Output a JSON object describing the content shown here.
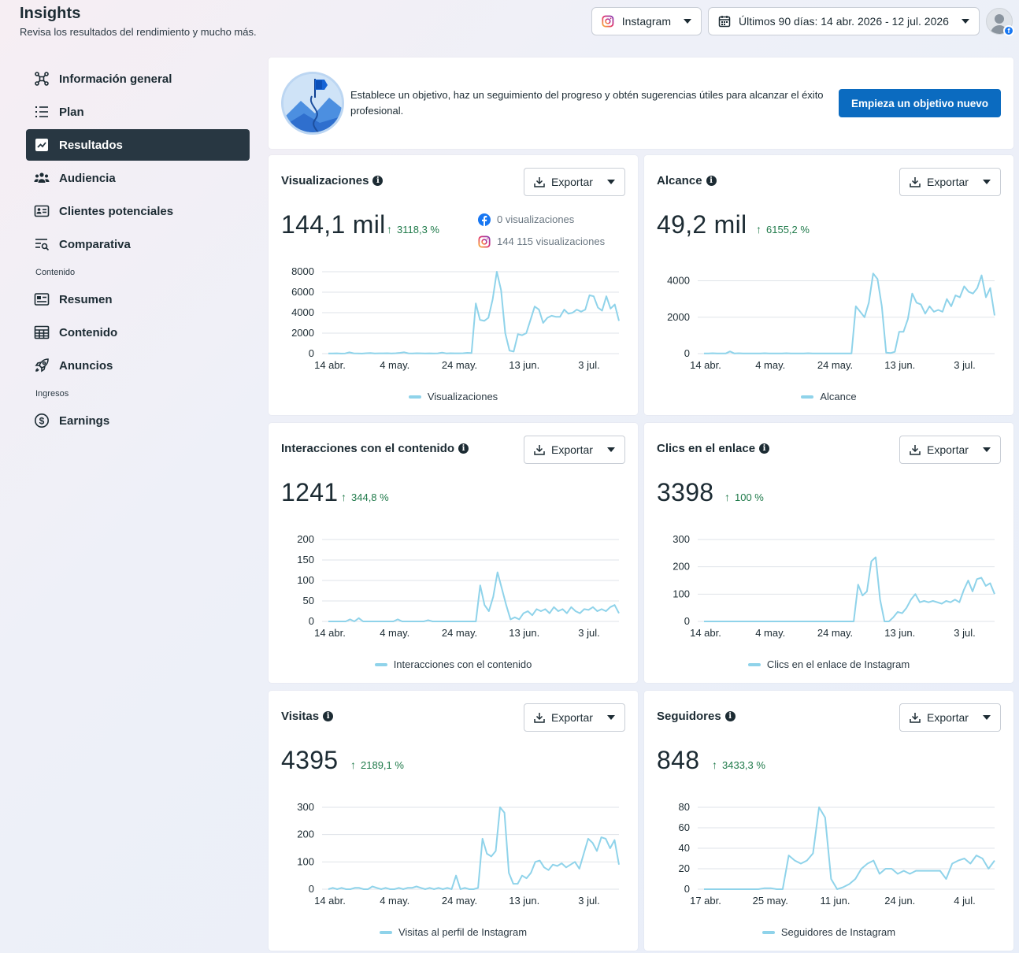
{
  "header": {
    "title": "Insights",
    "subtitle": "Revisa los resultados del rendimiento y mucho más.",
    "platform_label": "Instagram",
    "date_range_label": "Últimos 90 días: 14 abr. 2026 - 12 jul. 2026"
  },
  "sidebar": {
    "items": [
      {
        "label": "Información general",
        "icon": "network-icon"
      },
      {
        "label": "Plan",
        "icon": "list-icon"
      },
      {
        "label": "Resultados",
        "icon": "trend-chart-icon",
        "active": true
      },
      {
        "label": "Audiencia",
        "icon": "people-icon"
      },
      {
        "label": "Clientes potenciales",
        "icon": "contact-card-icon"
      },
      {
        "label": "Comparativa",
        "icon": "compare-list-icon"
      }
    ],
    "section_contenido": "Contenido",
    "content_items": [
      {
        "label": "Resumen",
        "icon": "summary-icon"
      },
      {
        "label": "Contenido",
        "icon": "table-icon"
      },
      {
        "label": "Anuncios",
        "icon": "rocket-icon"
      }
    ],
    "section_ingresos": "Ingresos",
    "income_items": [
      {
        "label": "Earnings",
        "icon": "dollar-icon"
      }
    ]
  },
  "goal": {
    "text": "Establece un objetivo, haz un seguimiento del progreso y obtén sugerencias útiles para alcanzar el éxito profesional.",
    "button_label": "Empieza un objetivo nuevo"
  },
  "export_label": "Exportar",
  "colors": {
    "line": "#8fd3ea",
    "active_nav": "#283742",
    "primary": "#0b6bc0",
    "positive": "#1f7a4a"
  },
  "cards": [
    {
      "title": "Visualizaciones",
      "value": "144,1 mil",
      "delta": "3118,3 %",
      "legend": "Visualizaciones",
      "breakdown": [
        {
          "icon": "facebook-icon",
          "text": "0 visualizaciones"
        },
        {
          "icon": "instagram-icon",
          "text": "144 115 visualizaciones"
        }
      ]
    },
    {
      "title": "Alcance",
      "value": "49,2 mil",
      "delta": "6155,2 %",
      "legend": "Alcance"
    },
    {
      "title": "Interacciones con el contenido",
      "value": "1241",
      "delta": "344,8 %",
      "legend": "Interacciones con el contenido"
    },
    {
      "title": "Clics en el enlace",
      "value": "3398",
      "delta": "100 %",
      "legend": "Clics en el enlace de Instagram"
    },
    {
      "title": "Visitas",
      "value": "4395",
      "delta": "2189,1 %",
      "legend": "Visitas al perfil de Instagram"
    },
    {
      "title": "Seguidores",
      "value": "848",
      "delta": "3433,3 %",
      "legend": "Seguidores de Instagram"
    }
  ],
  "chart_data": [
    {
      "type": "line",
      "series": [
        {
          "name": "Visualizaciones",
          "values": [
            20,
            20,
            30,
            10,
            20,
            120,
            30,
            20,
            10,
            40,
            60,
            20,
            30,
            30,
            40,
            20,
            40,
            80,
            130,
            30,
            20,
            40,
            30,
            20,
            30,
            20,
            30,
            100,
            20,
            40,
            30,
            30,
            40,
            80,
            60,
            4900,
            3300,
            3200,
            3500,
            5300,
            8000,
            6200,
            2000,
            300,
            200,
            1900,
            1800,
            2000,
            3300,
            4600,
            4300,
            3000,
            3500,
            3700,
            3600,
            3600,
            4300,
            3900,
            4000,
            4300,
            4100,
            4300,
            5700,
            5600,
            4500,
            4200,
            5600,
            4400,
            4800,
            3200
          ]
        }
      ],
      "x_ticks": [
        "14 abr.",
        "4 may.",
        "24 may.",
        "13 jun.",
        "3 jul."
      ],
      "y_ticks": [
        0,
        2000,
        4000,
        6000,
        8000
      ],
      "ylim": [
        0,
        8000
      ],
      "grid": true
    },
    {
      "type": "line",
      "series": [
        {
          "name": "Alcance",
          "values": [
            10,
            10,
            20,
            10,
            10,
            10,
            120,
            10,
            20,
            10,
            10,
            10,
            10,
            10,
            20,
            10,
            10,
            10,
            10,
            20,
            10,
            10,
            10,
            10,
            20,
            10,
            10,
            10,
            10,
            10,
            10,
            10,
            10,
            10,
            10,
            2600,
            2300,
            2000,
            2800,
            4400,
            4100,
            2600,
            50,
            30,
            100,
            1200,
            1200,
            1900,
            3300,
            2800,
            2700,
            2200,
            2600,
            2300,
            2400,
            2300,
            3000,
            2600,
            3200,
            3100,
            3700,
            3400,
            3300,
            3600,
            4300,
            3100,
            3600,
            2100
          ]
        }
      ],
      "x_ticks": [
        "14 abr.",
        "4 may.",
        "24 may.",
        "13 jun.",
        "3 jul."
      ],
      "y_ticks": [
        0,
        2000,
        4000
      ],
      "ylim": [
        0,
        4500
      ],
      "grid": true
    },
    {
      "type": "line",
      "series": [
        {
          "name": "Interacciones con el contenido",
          "values": [
            0,
            0,
            0,
            0,
            0,
            5,
            0,
            8,
            0,
            0,
            0,
            0,
            0,
            0,
            0,
            0,
            5,
            0,
            0,
            0,
            0,
            0,
            0,
            3,
            0,
            0,
            0,
            0,
            0,
            0,
            0,
            0,
            0,
            0,
            0,
            88,
            40,
            25,
            60,
            120,
            80,
            40,
            5,
            10,
            5,
            20,
            25,
            15,
            30,
            25,
            30,
            20,
            35,
            25,
            30,
            20,
            35,
            25,
            20,
            30,
            28,
            35,
            25,
            30,
            25,
            35,
            40,
            20
          ]
        }
      ],
      "x_ticks": [
        "14 abr.",
        "4 may.",
        "24 may.",
        "13 jun.",
        "3 jul."
      ],
      "y_ticks": [
        0,
        50,
        100,
        150,
        200
      ],
      "ylim": [
        0,
        200
      ],
      "grid": true
    },
    {
      "type": "line",
      "series": [
        {
          "name": "Clics en el enlace de Instagram",
          "values": [
            0,
            0,
            0,
            0,
            0,
            0,
            0,
            0,
            0,
            0,
            0,
            0,
            0,
            0,
            0,
            0,
            0,
            0,
            0,
            0,
            0,
            0,
            0,
            0,
            0,
            0,
            0,
            0,
            0,
            0,
            0,
            0,
            0,
            0,
            0,
            135,
            95,
            110,
            220,
            235,
            80,
            0,
            0,
            15,
            35,
            30,
            50,
            80,
            100,
            70,
            75,
            70,
            75,
            70,
            65,
            75,
            70,
            80,
            70,
            115,
            150,
            110,
            155,
            160,
            130,
            140,
            100
          ]
        }
      ],
      "x_ticks": [
        "14 abr.",
        "4 may.",
        "24 may.",
        "13 jun.",
        "3 jul."
      ],
      "y_ticks": [
        0,
        100,
        200,
        300
      ],
      "ylim": [
        0,
        300
      ],
      "grid": true
    },
    {
      "type": "line",
      "series": [
        {
          "name": "Visitas al perfil de Instagram",
          "values": [
            0,
            5,
            0,
            5,
            0,
            0,
            5,
            5,
            0,
            0,
            10,
            5,
            0,
            5,
            0,
            0,
            5,
            0,
            5,
            5,
            10,
            5,
            0,
            5,
            0,
            5,
            0,
            5,
            0,
            50,
            0,
            5,
            0,
            0,
            5,
            185,
            130,
            120,
            140,
            300,
            280,
            60,
            20,
            20,
            50,
            40,
            60,
            100,
            105,
            80,
            70,
            90,
            85,
            95,
            80,
            90,
            100,
            75,
            130,
            185,
            170,
            140,
            190,
            185,
            150,
            180,
            90
          ]
        }
      ],
      "x_ticks": [
        "14 abr.",
        "4 may.",
        "24 may.",
        "13 jun.",
        "3 jul."
      ],
      "y_ticks": [
        0,
        100,
        200,
        300
      ],
      "ylim": [
        0,
        300
      ],
      "grid": true
    },
    {
      "type": "line",
      "series": [
        {
          "name": "Seguidores de Instagram",
          "values": [
            0,
            0,
            0,
            0,
            0,
            0,
            0,
            0,
            0,
            0,
            1,
            1,
            0,
            0,
            33,
            28,
            25,
            28,
            35,
            80,
            70,
            10,
            0,
            2,
            5,
            10,
            20,
            25,
            28,
            15,
            20,
            20,
            15,
            18,
            15,
            18,
            18,
            18,
            18,
            18,
            10,
            25,
            28,
            30,
            25,
            33,
            30,
            20,
            28
          ]
        }
      ],
      "x_ticks": [
        "17 abr.",
        "25 may.",
        "11 jun.",
        "24 jun.",
        "4 jul."
      ],
      "y_ticks": [
        0,
        20,
        40,
        60,
        80
      ],
      "ylim": [
        0,
        80
      ],
      "grid": true
    }
  ]
}
